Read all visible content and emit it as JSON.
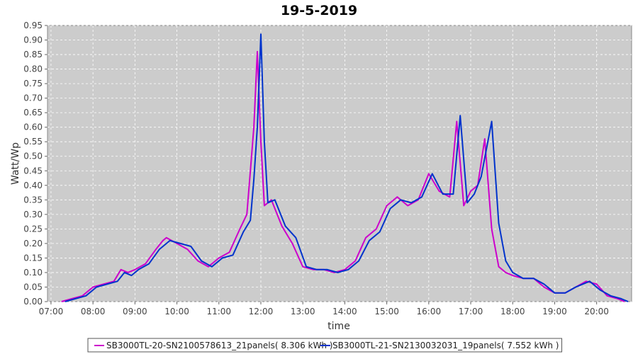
{
  "chart_data": {
    "type": "line",
    "title": "19-5-2019",
    "xlabel": "time",
    "ylabel": "Watt/Wp",
    "xlim": [
      "06:55",
      "20:50"
    ],
    "ylim": [
      0,
      0.95
    ],
    "x_ticks": [
      "07:00",
      "08:00",
      "09:00",
      "10:00",
      "11:00",
      "12:00",
      "13:00",
      "14:00",
      "15:00",
      "16:00",
      "17:00",
      "18:00",
      "19:00",
      "20:00"
    ],
    "y_ticks": [
      "0.00",
      "0.05",
      "0.10",
      "0.15",
      "0.20",
      "0.25",
      "0.30",
      "0.35",
      "0.40",
      "0.45",
      "0.50",
      "0.55",
      "0.60",
      "0.65",
      "0.70",
      "0.75",
      "0.80",
      "0.85",
      "0.90",
      "0.95"
    ],
    "grid": true,
    "legend_position": "bottom-center",
    "colors": {
      "plot_background": "#cccccc",
      "grid": "#ffffff"
    },
    "series": [
      {
        "name": "SB3000TL-20-SN2100578613_21panels( 8.306 kWh )",
        "color": "#cc00cc",
        "points": [
          [
            "07:15",
            0.0
          ],
          [
            "07:30",
            0.01
          ],
          [
            "07:45",
            0.02
          ],
          [
            "08:00",
            0.05
          ],
          [
            "08:15",
            0.06
          ],
          [
            "08:30",
            0.07
          ],
          [
            "08:40",
            0.11
          ],
          [
            "08:50",
            0.1
          ],
          [
            "09:00",
            0.11
          ],
          [
            "09:15",
            0.13
          ],
          [
            "09:30",
            0.18
          ],
          [
            "09:40",
            0.21
          ],
          [
            "09:45",
            0.22
          ],
          [
            "10:00",
            0.2
          ],
          [
            "10:15",
            0.18
          ],
          [
            "10:30",
            0.14
          ],
          [
            "10:45",
            0.12
          ],
          [
            "11:00",
            0.15
          ],
          [
            "11:15",
            0.17
          ],
          [
            "11:30",
            0.25
          ],
          [
            "11:40",
            0.3
          ],
          [
            "11:45",
            0.45
          ],
          [
            "11:50",
            0.6
          ],
          [
            "11:55",
            0.86
          ],
          [
            "12:00",
            0.55
          ],
          [
            "12:05",
            0.33
          ],
          [
            "12:15",
            0.35
          ],
          [
            "12:30",
            0.26
          ],
          [
            "12:45",
            0.2
          ],
          [
            "13:00",
            0.12
          ],
          [
            "13:15",
            0.11
          ],
          [
            "13:30",
            0.11
          ],
          [
            "13:45",
            0.1
          ],
          [
            "14:00",
            0.11
          ],
          [
            "14:15",
            0.14
          ],
          [
            "14:30",
            0.22
          ],
          [
            "14:45",
            0.25
          ],
          [
            "15:00",
            0.33
          ],
          [
            "15:15",
            0.36
          ],
          [
            "15:30",
            0.33
          ],
          [
            "15:45",
            0.35
          ],
          [
            "16:00",
            0.44
          ],
          [
            "16:15",
            0.38
          ],
          [
            "16:30",
            0.36
          ],
          [
            "16:40",
            0.62
          ],
          [
            "16:50",
            0.33
          ],
          [
            "17:00",
            0.38
          ],
          [
            "17:10",
            0.4
          ],
          [
            "17:20",
            0.56
          ],
          [
            "17:30",
            0.25
          ],
          [
            "17:40",
            0.12
          ],
          [
            "17:50",
            0.1
          ],
          [
            "18:00",
            0.09
          ],
          [
            "18:15",
            0.08
          ],
          [
            "18:30",
            0.08
          ],
          [
            "18:45",
            0.05
          ],
          [
            "19:00",
            0.03
          ],
          [
            "19:15",
            0.03
          ],
          [
            "19:30",
            0.05
          ],
          [
            "19:45",
            0.07
          ],
          [
            "20:00",
            0.06
          ],
          [
            "20:15",
            0.02
          ],
          [
            "20:30",
            0.01
          ],
          [
            "20:40",
            0.0
          ]
        ]
      },
      {
        "name": "SB3000TL-21-SN2130032031_19panels( 7.552 kWh )",
        "color": "#0033cc",
        "points": [
          [
            "07:20",
            0.0
          ],
          [
            "07:35",
            0.01
          ],
          [
            "07:50",
            0.02
          ],
          [
            "08:05",
            0.05
          ],
          [
            "08:20",
            0.06
          ],
          [
            "08:35",
            0.07
          ],
          [
            "08:45",
            0.1
          ],
          [
            "08:55",
            0.09
          ],
          [
            "09:05",
            0.11
          ],
          [
            "09:20",
            0.13
          ],
          [
            "09:35",
            0.18
          ],
          [
            "09:45",
            0.2
          ],
          [
            "09:50",
            0.21
          ],
          [
            "10:05",
            0.2
          ],
          [
            "10:20",
            0.19
          ],
          [
            "10:35",
            0.14
          ],
          [
            "10:50",
            0.12
          ],
          [
            "11:05",
            0.15
          ],
          [
            "11:20",
            0.16
          ],
          [
            "11:35",
            0.24
          ],
          [
            "11:45",
            0.28
          ],
          [
            "11:50",
            0.42
          ],
          [
            "11:55",
            0.6
          ],
          [
            "12:00",
            0.92
          ],
          [
            "12:05",
            0.55
          ],
          [
            "12:10",
            0.34
          ],
          [
            "12:20",
            0.35
          ],
          [
            "12:35",
            0.26
          ],
          [
            "12:50",
            0.22
          ],
          [
            "13:05",
            0.12
          ],
          [
            "13:20",
            0.11
          ],
          [
            "13:35",
            0.11
          ],
          [
            "13:50",
            0.1
          ],
          [
            "14:05",
            0.11
          ],
          [
            "14:20",
            0.14
          ],
          [
            "14:35",
            0.21
          ],
          [
            "14:50",
            0.24
          ],
          [
            "15:05",
            0.32
          ],
          [
            "15:20",
            0.35
          ],
          [
            "15:35",
            0.34
          ],
          [
            "15:50",
            0.36
          ],
          [
            "16:05",
            0.44
          ],
          [
            "16:20",
            0.37
          ],
          [
            "16:35",
            0.37
          ],
          [
            "16:45",
            0.64
          ],
          [
            "16:55",
            0.34
          ],
          [
            "17:05",
            0.37
          ],
          [
            "17:15",
            0.43
          ],
          [
            "17:30",
            0.62
          ],
          [
            "17:40",
            0.27
          ],
          [
            "17:50",
            0.14
          ],
          [
            "18:00",
            0.1
          ],
          [
            "18:15",
            0.08
          ],
          [
            "18:30",
            0.08
          ],
          [
            "18:45",
            0.06
          ],
          [
            "19:00",
            0.03
          ],
          [
            "19:15",
            0.03
          ],
          [
            "19:30",
            0.05
          ],
          [
            "19:50",
            0.07
          ],
          [
            "20:05",
            0.04
          ],
          [
            "20:20",
            0.02
          ],
          [
            "20:35",
            0.01
          ],
          [
            "20:45",
            0.0
          ]
        ]
      }
    ]
  }
}
